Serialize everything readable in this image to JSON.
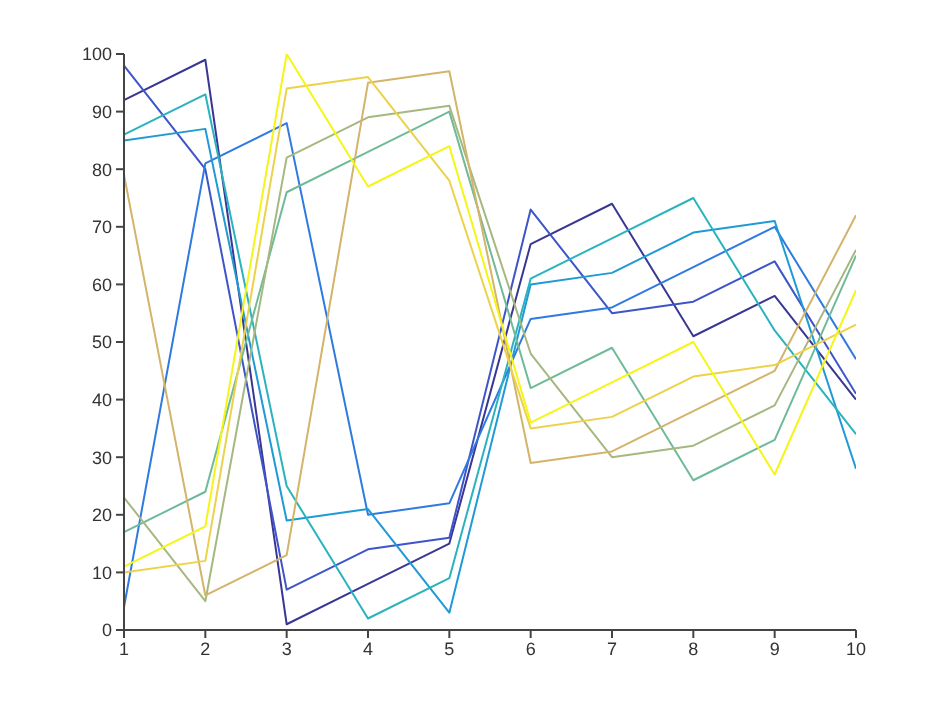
{
  "chart_data": {
    "type": "line",
    "x": [
      1,
      2,
      3,
      4,
      5,
      6,
      7,
      8,
      9,
      10
    ],
    "series": [
      {
        "color": "#3a3794",
        "values": [
          92,
          99,
          1,
          8,
          15,
          67,
          74,
          51,
          58,
          40
        ]
      },
      {
        "color": "#3d55c9",
        "values": [
          98,
          80,
          7,
          14,
          16,
          73,
          55,
          57,
          64,
          41
        ]
      },
      {
        "color": "#2f7ae0",
        "values": [
          4,
          81,
          88,
          20,
          22,
          54,
          56,
          63,
          70,
          47
        ]
      },
      {
        "color": "#1f9ad6",
        "values": [
          85,
          87,
          19,
          21,
          3,
          60,
          62,
          69,
          71,
          28
        ]
      },
      {
        "color": "#2ab3bf",
        "values": [
          86,
          93,
          25,
          2,
          9,
          61,
          68,
          75,
          52,
          34
        ]
      },
      {
        "color": "#6fba98",
        "values": [
          17,
          24,
          76,
          83,
          90,
          42,
          49,
          26,
          33,
          65
        ]
      },
      {
        "color": "#a6b880",
        "values": [
          23,
          5,
          82,
          89,
          91,
          48,
          30,
          32,
          39,
          66
        ]
      },
      {
        "color": "#d4b46a",
        "values": [
          79,
          6,
          13,
          95,
          97,
          29,
          31,
          38,
          45,
          72
        ]
      },
      {
        "color": "#ecd24a",
        "values": [
          10,
          12,
          94,
          96,
          78,
          35,
          37,
          44,
          46,
          53
        ]
      },
      {
        "color": "#f5f516",
        "values": [
          11,
          18,
          100,
          77,
          84,
          36,
          43,
          50,
          27,
          59
        ]
      }
    ],
    "xlim": [
      1,
      10
    ],
    "xticks": [
      1,
      2,
      3,
      4,
      5,
      6,
      7,
      8,
      9,
      10
    ],
    "ylim": [
      0,
      100
    ],
    "yticks": [
      0,
      10,
      20,
      30,
      40,
      50,
      60,
      70,
      80,
      90,
      100
    ],
    "grid": false,
    "legend": false,
    "marker": "none",
    "line_style": "solid"
  }
}
